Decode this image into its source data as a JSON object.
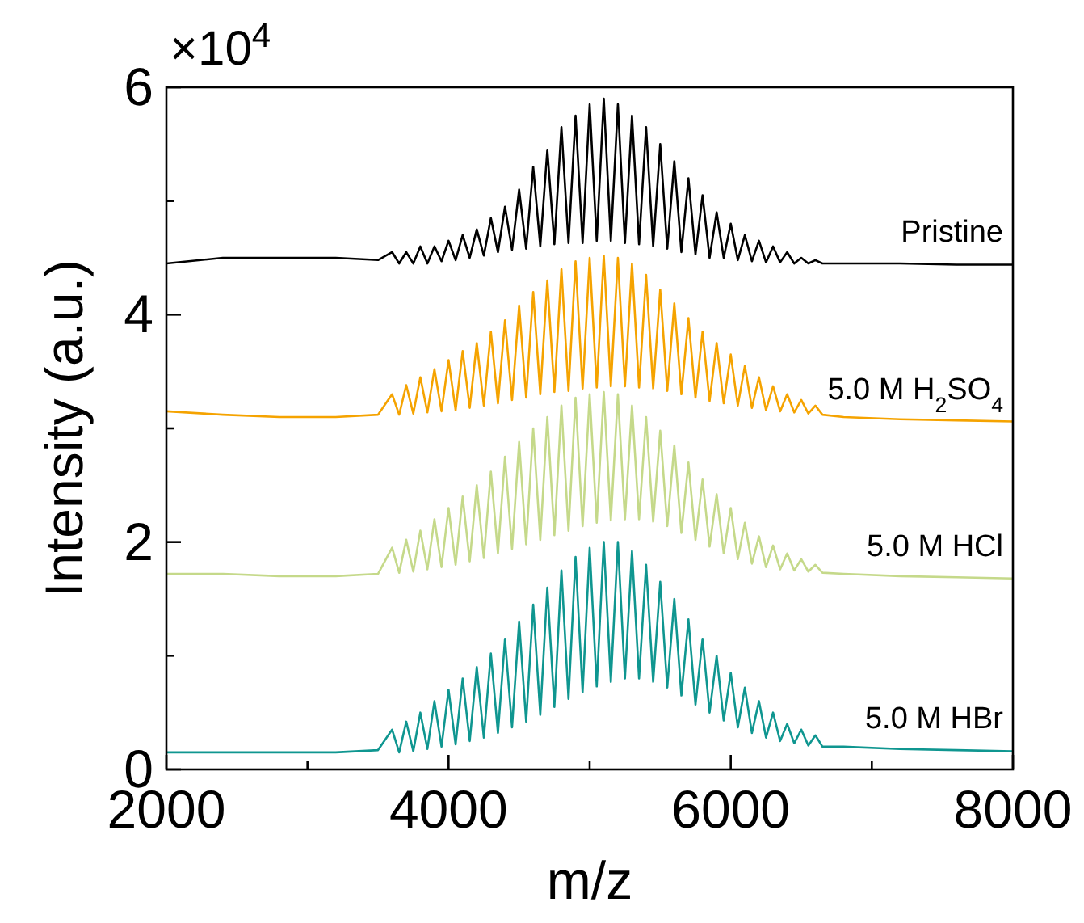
{
  "chart_data": {
    "type": "line",
    "xlabel": "m/z",
    "ylabel": "Intensity (a.u.)",
    "annotations": [
      "×10$^{4}$"
    ],
    "xlim": [
      2000,
      8000
    ],
    "xticks": [
      2000,
      {
        "value": 3000,
        "label": null
      },
      4000,
      {
        "value": 5000,
        "label": null
      },
      6000,
      {
        "value": 7000,
        "label": null
      },
      8000
    ],
    "ylim": [
      0,
      6
    ],
    "yticks": [
      0,
      {
        "value": 1,
        "label": null
      },
      2,
      {
        "value": 3,
        "label": null
      },
      4,
      {
        "value": 5,
        "label": null
      },
      6
    ],
    "grid": false,
    "marker": "none",
    "line_style": "solid",
    "x": [
      2000,
      2400,
      2800,
      3200,
      3500,
      3600,
      3650,
      3700,
      3750,
      3800,
      3850,
      3900,
      3950,
      4000,
      4050,
      4100,
      4150,
      4200,
      4250,
      4300,
      4350,
      4400,
      4450,
      4500,
      4550,
      4600,
      4650,
      4700,
      4750,
      4800,
      4850,
      4900,
      4950,
      5000,
      5050,
      5100,
      5150,
      5200,
      5250,
      5300,
      5350,
      5400,
      5450,
      5500,
      5550,
      5600,
      5650,
      5700,
      5750,
      5800,
      5850,
      5900,
      5950,
      6000,
      6050,
      6100,
      6150,
      6200,
      6250,
      6300,
      6350,
      6400,
      6450,
      6500,
      6550,
      6600,
      6650,
      6800,
      7200,
      7600,
      8000
    ],
    "series": [
      {
        "name": "Pristine",
        "color": "#000000",
        "values": [
          4.45,
          4.5,
          4.5,
          4.5,
          4.48,
          4.55,
          4.45,
          4.55,
          4.45,
          4.6,
          4.45,
          4.6,
          4.47,
          4.65,
          4.48,
          4.7,
          4.5,
          4.75,
          4.52,
          4.85,
          4.55,
          4.95,
          4.57,
          5.1,
          4.58,
          5.3,
          4.6,
          5.45,
          4.62,
          5.65,
          4.63,
          5.75,
          4.63,
          5.85,
          4.65,
          5.9,
          4.65,
          5.85,
          4.63,
          5.75,
          4.62,
          5.65,
          4.6,
          5.5,
          4.58,
          5.35,
          4.55,
          5.2,
          4.53,
          5.05,
          4.5,
          4.9,
          4.5,
          4.8,
          4.48,
          4.7,
          4.47,
          4.65,
          4.46,
          4.6,
          4.46,
          4.55,
          4.45,
          4.5,
          4.45,
          4.48,
          4.45,
          4.45,
          4.45,
          4.44,
          4.44
        ]
      },
      {
        "name": "5.0 M H$_{2}$SO$_{4}$",
        "color": "#f5a300",
        "values": [
          3.15,
          3.12,
          3.1,
          3.1,
          3.12,
          3.3,
          3.12,
          3.38,
          3.13,
          3.45,
          3.14,
          3.52,
          3.15,
          3.6,
          3.16,
          3.68,
          3.18,
          3.75,
          3.2,
          3.85,
          3.22,
          3.95,
          3.25,
          4.08,
          3.27,
          4.2,
          3.3,
          4.3,
          3.32,
          4.4,
          3.33,
          4.47,
          3.35,
          4.5,
          3.36,
          4.52,
          3.37,
          4.5,
          3.37,
          4.45,
          3.36,
          4.35,
          3.35,
          4.22,
          3.33,
          4.1,
          3.3,
          3.97,
          3.27,
          3.85,
          3.24,
          3.75,
          3.22,
          3.65,
          3.2,
          3.55,
          3.18,
          3.45,
          3.16,
          3.37,
          3.15,
          3.3,
          3.14,
          3.25,
          3.13,
          3.2,
          3.12,
          3.1,
          3.08,
          3.07,
          3.06
        ]
      },
      {
        "name": "5.0 M HCl",
        "color": "#c5d98a",
        "values": [
          1.72,
          1.72,
          1.7,
          1.7,
          1.72,
          1.95,
          1.73,
          2.02,
          1.74,
          2.1,
          1.76,
          2.2,
          1.78,
          2.3,
          1.8,
          2.4,
          1.83,
          2.5,
          1.86,
          2.62,
          1.9,
          2.75,
          1.94,
          2.88,
          1.98,
          3.0,
          2.02,
          3.1,
          2.06,
          3.2,
          2.1,
          3.27,
          2.14,
          3.3,
          2.17,
          3.32,
          2.19,
          3.3,
          2.2,
          3.2,
          2.2,
          3.1,
          2.18,
          2.98,
          2.14,
          2.85,
          2.08,
          2.7,
          2.02,
          2.55,
          1.96,
          2.42,
          1.9,
          2.3,
          1.85,
          2.17,
          1.81,
          2.05,
          1.78,
          1.97,
          1.76,
          1.9,
          1.75,
          1.85,
          1.74,
          1.8,
          1.73,
          1.72,
          1.7,
          1.69,
          1.68
        ]
      },
      {
        "name": "5.0 M HBr",
        "color": "#0f9690",
        "values": [
          0.15,
          0.15,
          0.15,
          0.15,
          0.17,
          0.35,
          0.15,
          0.42,
          0.16,
          0.5,
          0.18,
          0.6,
          0.2,
          0.7,
          0.22,
          0.8,
          0.25,
          0.9,
          0.28,
          1.02,
          0.32,
          1.15,
          0.37,
          1.3,
          0.42,
          1.45,
          0.48,
          1.6,
          0.55,
          1.75,
          0.62,
          1.87,
          0.68,
          1.95,
          0.73,
          2.0,
          0.77,
          2.0,
          0.8,
          1.92,
          0.8,
          1.8,
          0.77,
          1.65,
          0.72,
          1.5,
          0.65,
          1.32,
          0.57,
          1.15,
          0.5,
          1.0,
          0.43,
          0.85,
          0.37,
          0.72,
          0.32,
          0.6,
          0.28,
          0.5,
          0.25,
          0.4,
          0.23,
          0.35,
          0.21,
          0.3,
          0.2,
          0.2,
          0.18,
          0.17,
          0.16
        ]
      }
    ]
  }
}
